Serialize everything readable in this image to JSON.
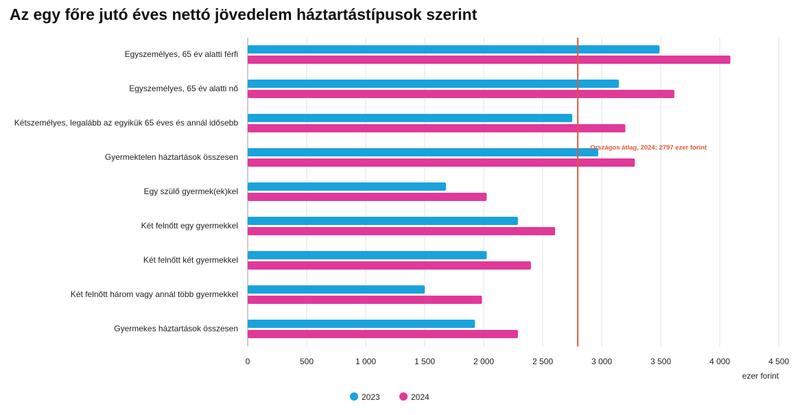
{
  "chart_data": {
    "type": "bar",
    "orientation": "horizontal",
    "title": "Az egy főre jutó éves nettó jövedelem háztartástípusok szerint",
    "xlabel": "ezer forint",
    "xlim": [
      0,
      4500
    ],
    "xticks": [
      0,
      500,
      1000,
      1500,
      2000,
      2500,
      3000,
      3500,
      4000,
      4500
    ],
    "xtick_labels": [
      "0",
      "500",
      "1 000",
      "1 500",
      "2 000",
      "2 500",
      "3 000",
      "3 500",
      "4 000",
      "4 500"
    ],
    "grid": true,
    "categories": [
      "Egyszemélyes, 65 év alatti férfi",
      "Egyszemélyes, 65 év alatti nő",
      "Kétszemélyes, legalább az egyikük 65 éves és annál idősebb",
      "Gyermektelen háztartások összesen",
      "Egy szülő gyermek(ek)kel",
      "Két felnőtt egy gyermekkel",
      "Két felnőtt két gyermekkel",
      "Két felnőtt három vagy annál több gyermekkel",
      "Gyermekes háztartások összesen"
    ],
    "series": [
      {
        "name": "2023",
        "color": "#19a3dd",
        "values": [
          3490,
          3145,
          2750,
          2970,
          1680,
          2290,
          2025,
          1500,
          1925
        ]
      },
      {
        "name": "2024",
        "color": "#e0399a",
        "values": [
          4090,
          3615,
          3200,
          3280,
          2025,
          2605,
          2400,
          1985,
          2290
        ]
      }
    ],
    "reference_line": {
      "value": 2797,
      "label": "Országos átlag, 2024: 2797 ezer forint",
      "color": "#e05a3a"
    },
    "legend": [
      "2023",
      "2024"
    ],
    "legend_position": "bottom-center"
  }
}
